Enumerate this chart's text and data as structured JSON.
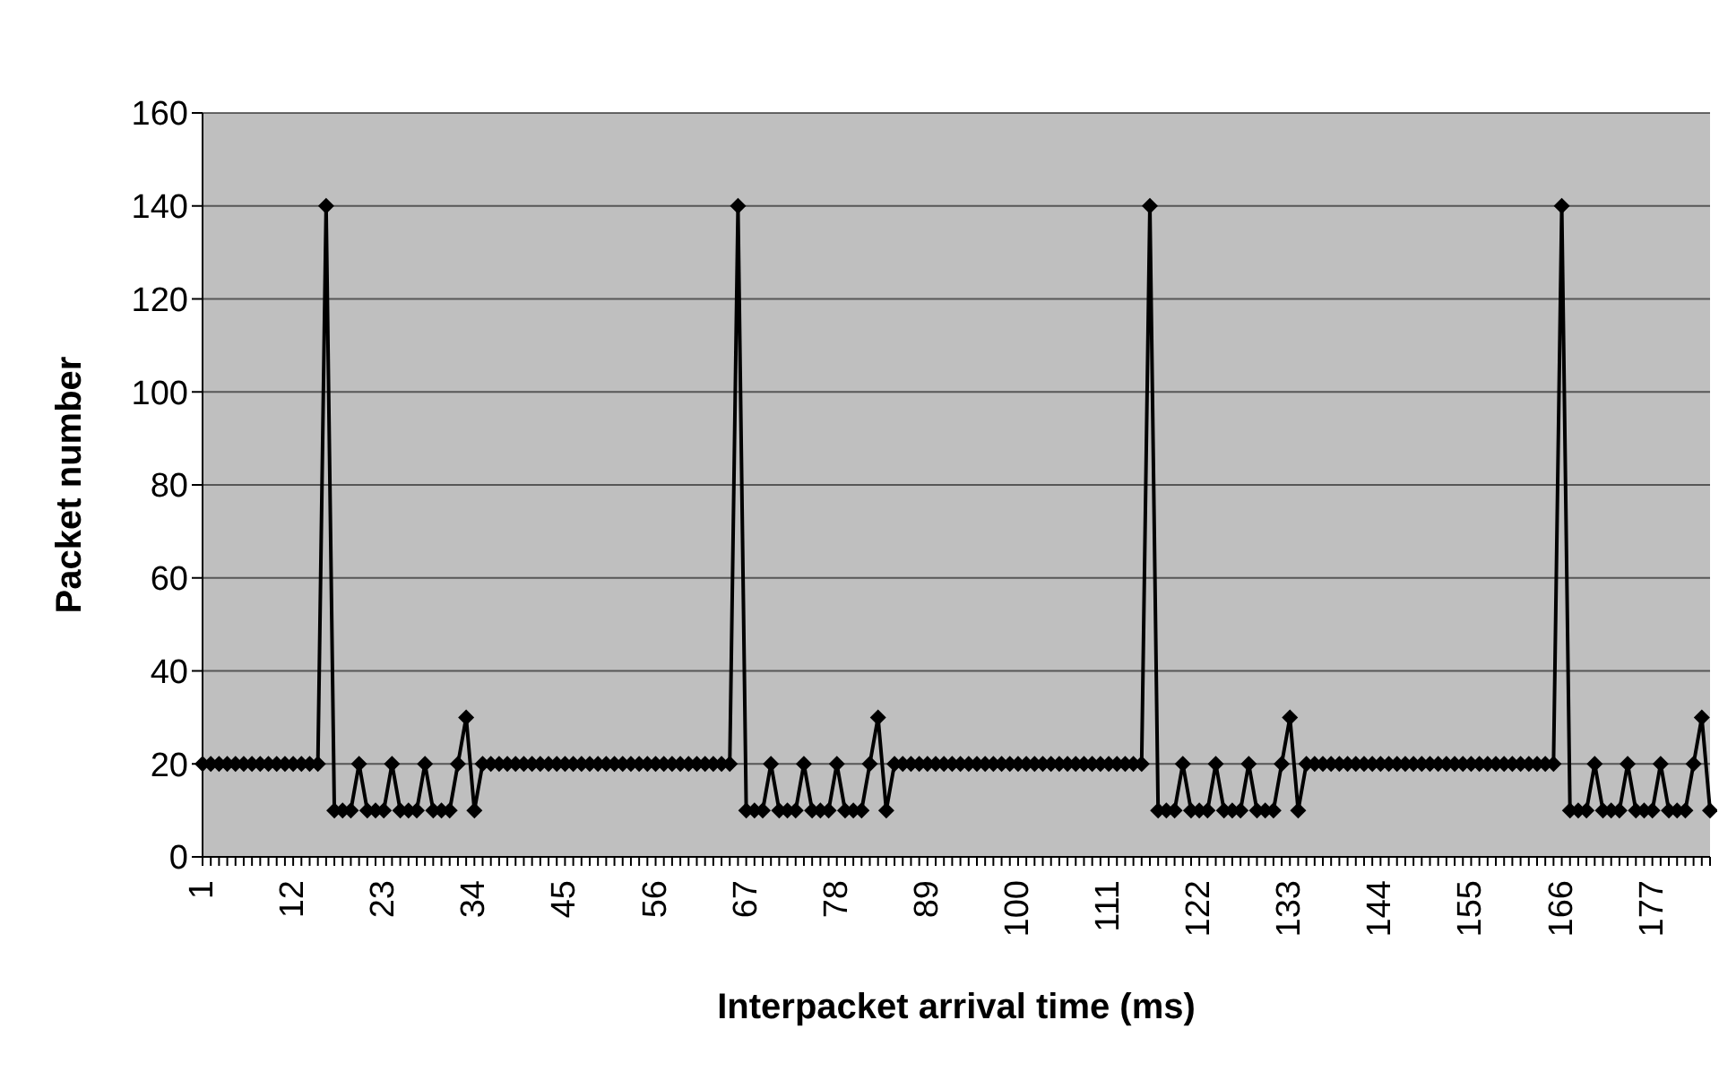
{
  "chart_data": {
    "type": "line",
    "xlabel": "Interpacket arrival time (ms)",
    "ylabel": "Packet number",
    "categories": [
      "1",
      null,
      null,
      null,
      null,
      null,
      null,
      null,
      null,
      null,
      null,
      "12",
      null,
      null,
      null,
      null,
      null,
      null,
      null,
      null,
      null,
      null,
      "23",
      null,
      null,
      null,
      null,
      null,
      null,
      null,
      null,
      null,
      null,
      "34",
      null,
      null,
      null,
      null,
      null,
      null,
      null,
      null,
      null,
      null,
      "45",
      null,
      null,
      null,
      null,
      null,
      null,
      null,
      null,
      null,
      null,
      "56",
      null,
      null,
      null,
      null,
      null,
      null,
      null,
      null,
      null,
      null,
      "67",
      null,
      null,
      null,
      null,
      null,
      null,
      null,
      null,
      null,
      null,
      "78",
      null,
      null,
      null,
      null,
      null,
      null,
      null,
      null,
      null,
      null,
      "89",
      null,
      null,
      null,
      null,
      null,
      null,
      null,
      null,
      null,
      null,
      "100",
      null,
      null,
      null,
      null,
      null,
      null,
      null,
      null,
      null,
      null,
      "111",
      null,
      null,
      null,
      null,
      null,
      null,
      null,
      null,
      null,
      null,
      "122",
      null,
      null,
      null,
      null,
      null,
      null,
      null,
      null,
      null,
      null,
      "133",
      null,
      null,
      null,
      null,
      null,
      null,
      null,
      null,
      null,
      null,
      "144",
      null,
      null,
      null,
      null,
      null,
      null,
      null,
      null,
      null,
      null,
      "155",
      null,
      null,
      null,
      null,
      null,
      null,
      null,
      null,
      null,
      null,
      "166",
      null,
      null,
      null,
      null,
      null,
      null,
      null,
      null,
      null,
      null,
      "177",
      null,
      null,
      null,
      null,
      null,
      null,
      null
    ],
    "series": [
      {
        "color": "#000000",
        "values": [
          20,
          20,
          20,
          20,
          20,
          20,
          20,
          20,
          20,
          20,
          20,
          20,
          20,
          20,
          20,
          140,
          10,
          10,
          10,
          20,
          10,
          10,
          10,
          20,
          10,
          10,
          10,
          20,
          10,
          10,
          10,
          20,
          30,
          10,
          20,
          20,
          20,
          20,
          20,
          20,
          20,
          20,
          20,
          20,
          20,
          20,
          20,
          20,
          20,
          20,
          20,
          20,
          20,
          20,
          20,
          20,
          20,
          20,
          20,
          20,
          20,
          20,
          20,
          20,
          20,
          140,
          10,
          10,
          10,
          20,
          10,
          10,
          10,
          20,
          10,
          10,
          10,
          20,
          10,
          10,
          10,
          20,
          30,
          10,
          20,
          20,
          20,
          20,
          20,
          20,
          20,
          20,
          20,
          20,
          20,
          20,
          20,
          20,
          20,
          20,
          20,
          20,
          20,
          20,
          20,
          20,
          20,
          20,
          20,
          20,
          20,
          20,
          20,
          20,
          20,
          140,
          10,
          10,
          10,
          20,
          10,
          10,
          10,
          20,
          10,
          10,
          10,
          20,
          10,
          10,
          10,
          20,
          30,
          10,
          20,
          20,
          20,
          20,
          20,
          20,
          20,
          20,
          20,
          20,
          20,
          20,
          20,
          20,
          20,
          20,
          20,
          20,
          20,
          20,
          20,
          20,
          20,
          20,
          20,
          20,
          20,
          20,
          20,
          20,
          20,
          140,
          10,
          10,
          10,
          20,
          10,
          10,
          10,
          20,
          10,
          10,
          10,
          20,
          10,
          10,
          10,
          20,
          30,
          10
        ]
      }
    ],
    "ylim": [
      0,
      160
    ],
    "yticks": [
      0,
      20,
      40,
      60,
      80,
      100,
      120,
      140,
      160
    ],
    "grid": "y",
    "marker": "diamond",
    "line_style": "solid"
  }
}
